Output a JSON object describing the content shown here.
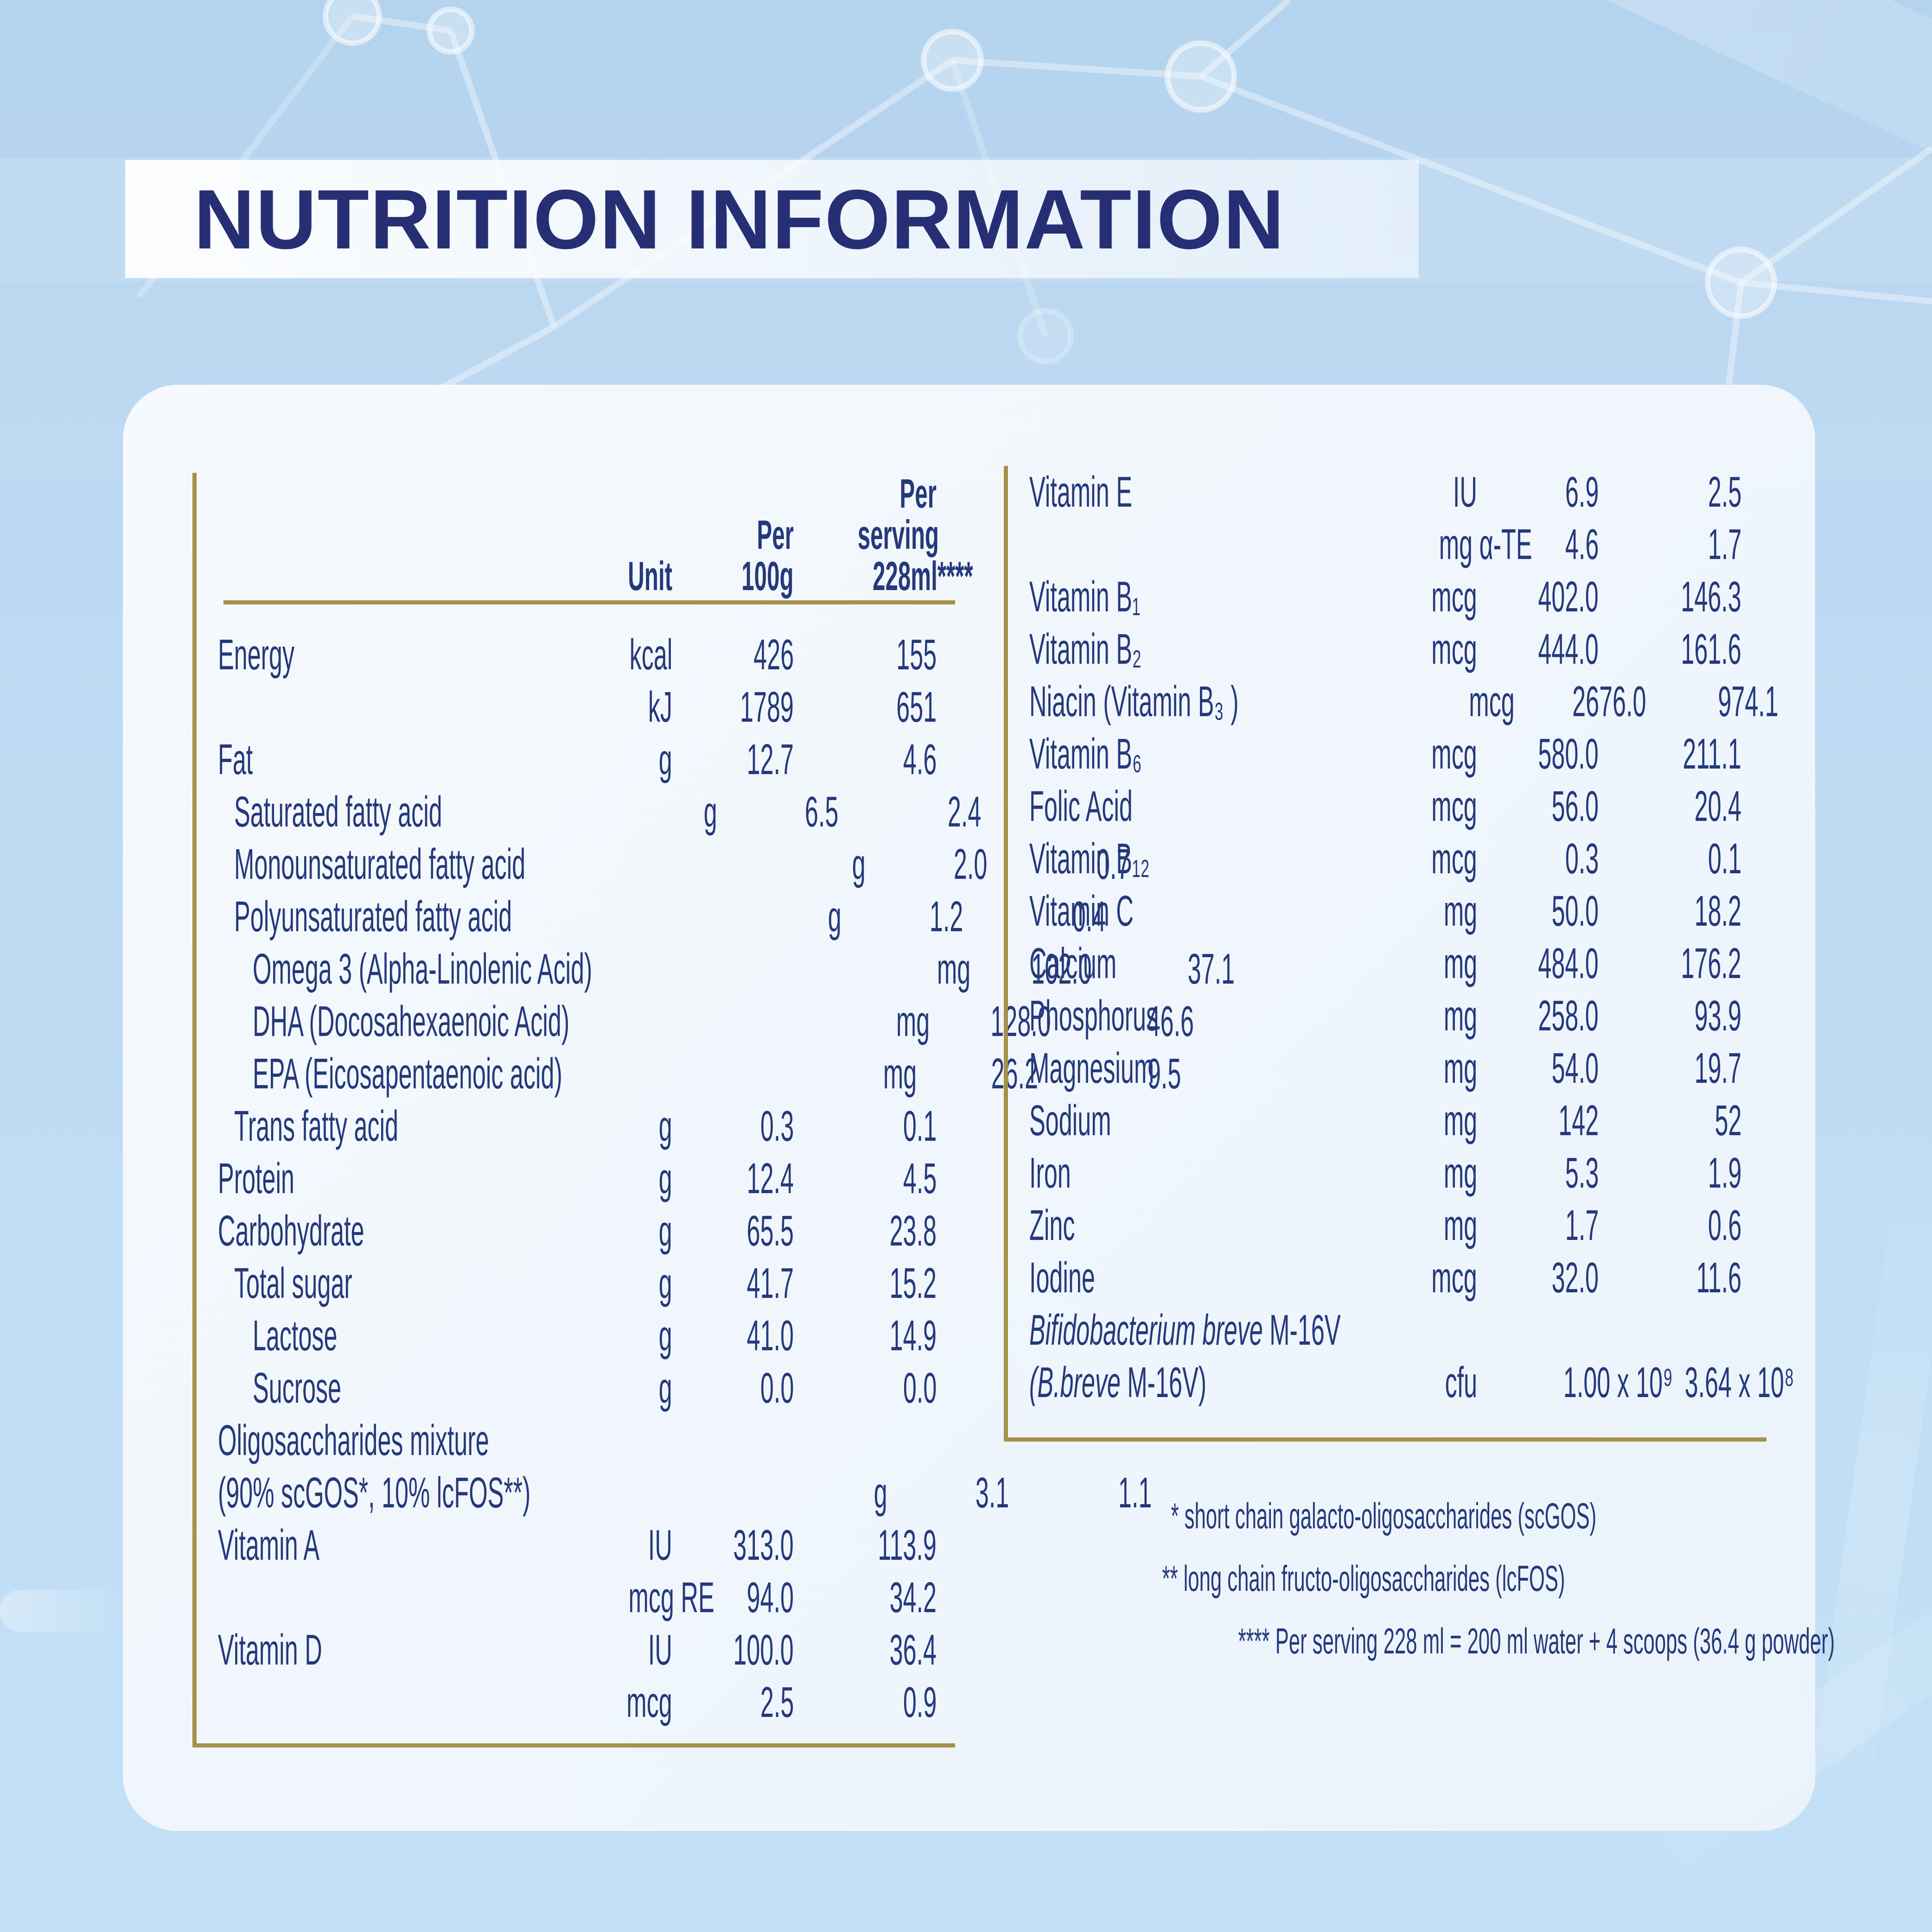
{
  "title": "NUTRITION INFORMATION",
  "colors": {
    "background_blue": "#bedbf4",
    "card_white": "#f3f7fc",
    "gold_rule": "#a5914a",
    "text_navy": "#25397b",
    "title_navy": "#272f74"
  },
  "table": {
    "header": {
      "unit_lines": [
        "Unit"
      ],
      "per100_lines": [
        "Per",
        "100g"
      ],
      "serving_lines": [
        "Per",
        "serving",
        "228ml****"
      ]
    },
    "left_rows": [
      {
        "label": "Energy",
        "unit": "kcal",
        "per100": "426",
        "serving": "155",
        "indent": 0
      },
      {
        "label": "",
        "unit": "kJ",
        "per100": "1789",
        "serving": "651",
        "indent": 0
      },
      {
        "label": "Fat",
        "unit": "g",
        "per100": "12.7",
        "serving": "4.6",
        "indent": 0
      },
      {
        "label": "Saturated fatty acid",
        "unit": "g",
        "per100": "6.5",
        "serving": "2.4",
        "indent": 1
      },
      {
        "label": "Monounsaturated fatty acid",
        "unit": "g",
        "per100": "2.0",
        "serving": "0.7",
        "indent": 1
      },
      {
        "label": "Polyunsaturated fatty acid",
        "unit": "g",
        "per100": "1.2",
        "serving": "0.4",
        "indent": 1
      },
      {
        "label": "Omega 3 (Alpha-Linolenic Acid)",
        "unit": "mg",
        "per100": "102.0",
        "serving": "37.1",
        "indent": 2
      },
      {
        "label": "DHA (Docosahexaenoic Acid)",
        "unit": "mg",
        "per100": "128.0",
        "serving": "46.6",
        "indent": 2
      },
      {
        "label": "EPA (Eicosapentaenoic acid)",
        "unit": "mg",
        "per100": "26.2",
        "serving": "9.5",
        "indent": 2
      },
      {
        "label": "Trans fatty acid",
        "unit": "g",
        "per100": "0.3",
        "serving": "0.1",
        "indent": 1
      },
      {
        "label": "Protein",
        "unit": "g",
        "per100": "12.4",
        "serving": "4.5",
        "indent": 0
      },
      {
        "label": "Carbohydrate",
        "unit": "g",
        "per100": "65.5",
        "serving": "23.8",
        "indent": 0
      },
      {
        "label": "Total sugar",
        "unit": "g",
        "per100": "41.7",
        "serving": "15.2",
        "indent": 1
      },
      {
        "label": "Lactose",
        "unit": "g",
        "per100": "41.0",
        "serving": "14.9",
        "indent": 2
      },
      {
        "label": "Sucrose",
        "unit": "g",
        "per100": "0.0",
        "serving": "0.0",
        "indent": 2
      },
      {
        "label": "Oligosaccharides mixture",
        "unit": "",
        "per100": "",
        "serving": "",
        "indent": 0
      },
      {
        "label": "(90% scGOS*, 10% lcFOS**)",
        "unit": "g",
        "per100": "3.1",
        "serving": "1.1",
        "indent": 0
      },
      {
        "label": "Vitamin A",
        "unit": "IU",
        "per100": "313.0",
        "serving": "113.9",
        "indent": 0
      },
      {
        "label": "",
        "unit": "mcg RE",
        "per100": "94.0",
        "serving": "34.2",
        "indent": 0
      },
      {
        "label": "Vitamin D",
        "unit": "IU",
        "per100": "100.0",
        "serving": "36.4",
        "indent": 0
      },
      {
        "label": "",
        "unit": "mcg",
        "per100": "2.5",
        "serving": "0.9",
        "indent": 0
      }
    ],
    "right_rows": [
      {
        "label": "Vitamin E",
        "unit": "IU",
        "per100": "6.9",
        "serving": "2.5",
        "indent": 0
      },
      {
        "label": "",
        "unit": "mg α-TE",
        "per100": "4.6",
        "serving": "1.7",
        "indent": 0
      },
      {
        "label": "Vitamin B₁",
        "unit": "mcg",
        "per100": "402.0",
        "serving": "146.3",
        "indent": 0
      },
      {
        "label": "Vitamin B₂",
        "unit": "mcg",
        "per100": "444.0",
        "serving": "161.6",
        "indent": 0
      },
      {
        "label": "Niacin (Vitamin B₃ )",
        "unit": "mcg",
        "per100": "2676.0",
        "serving": "974.1",
        "indent": 0
      },
      {
        "label": "Vitamin B₆",
        "unit": "mcg",
        "per100": "580.0",
        "serving": "211.1",
        "indent": 0
      },
      {
        "label": "Folic Acid",
        "unit": "mcg",
        "per100": "56.0",
        "serving": "20.4",
        "indent": 0
      },
      {
        "label": "Vitamin B₁₂",
        "unit": "mcg",
        "per100": "0.3",
        "serving": "0.1",
        "indent": 0
      },
      {
        "label": "Vitamin C",
        "unit": "mg",
        "per100": "50.0",
        "serving": "18.2",
        "indent": 0
      },
      {
        "label": "Calcium",
        "unit": "mg",
        "per100": "484.0",
        "serving": "176.2",
        "indent": 0
      },
      {
        "label": "Phosphorus",
        "unit": "mg",
        "per100": "258.0",
        "serving": "93.9",
        "indent": 0
      },
      {
        "label": "Magnesium",
        "unit": "mg",
        "per100": "54.0",
        "serving": "19.7",
        "indent": 0
      },
      {
        "label": "Sodium",
        "unit": "mg",
        "per100": "142",
        "serving": "52",
        "indent": 0
      },
      {
        "label": "Iron",
        "unit": "mg",
        "per100": "5.3",
        "serving": "1.9",
        "indent": 0
      },
      {
        "label": "Zinc",
        "unit": "mg",
        "per100": "1.7",
        "serving": "0.6",
        "indent": 0
      },
      {
        "label": "Iodine",
        "unit": "mcg",
        "per100": "32.0",
        "serving": "11.6",
        "indent": 0
      },
      {
        "label_italic": "Bifidobacterium breve",
        "label_rest": " M-16V",
        "label": "",
        "unit": "",
        "per100": "",
        "serving": "",
        "indent": 0
      },
      {
        "label_italic": "(B.breve",
        "label_rest": " M-16V)",
        "label": "",
        "unit": "cfu",
        "per100": "1.00 x 10⁹",
        "serving": "3.64 x 10⁸",
        "indent": 0
      }
    ],
    "footnotes": [
      "* short chain galacto-oligosaccharides (scGOS)",
      "** long chain fructo-oligosaccharides (lcFOS)",
      "**** Per serving 228 ml = 200 ml water + 4 scoops (36.4 g powder)"
    ]
  }
}
